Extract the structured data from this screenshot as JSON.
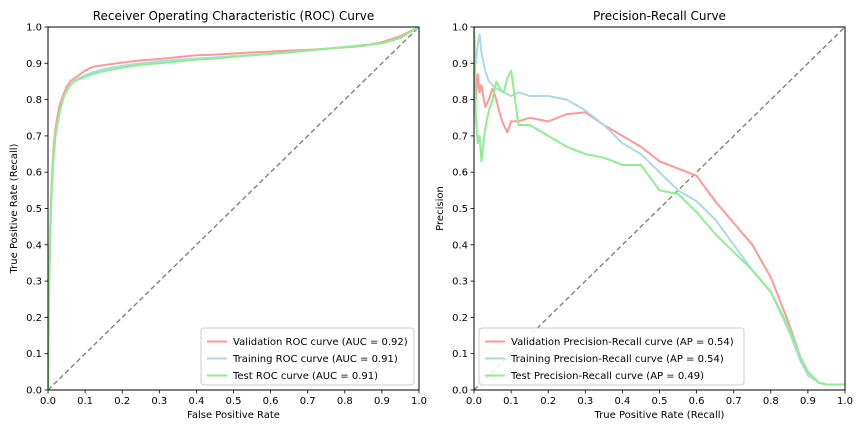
{
  "chart_data": [
    {
      "type": "line",
      "title": "Receiver Operating Characteristic (ROC) Curve",
      "xlabel": "False Positive Rate",
      "ylabel": "True Positive Rate (Recall)",
      "xlim": [
        0,
        1
      ],
      "ylim": [
        0,
        1
      ],
      "xticks": [
        "0.0",
        "0.1",
        "0.2",
        "0.3",
        "0.4",
        "0.5",
        "0.6",
        "0.7",
        "0.8",
        "0.9",
        "1.0"
      ],
      "yticks": [
        "0.0",
        "0.1",
        "0.2",
        "0.3",
        "0.4",
        "0.5",
        "0.6",
        "0.7",
        "0.8",
        "0.9",
        "1.0"
      ],
      "legend_position": "lower-right",
      "reference_line": {
        "x": [
          0,
          1
        ],
        "y": [
          0,
          1
        ],
        "color": "#808080",
        "style": "dashed"
      },
      "series": [
        {
          "name": "Validation ROC curve (AUC = 0.92)",
          "color": "#ff9999",
          "x": [
            0,
            0.003,
            0.006,
            0.01,
            0.015,
            0.02,
            0.03,
            0.04,
            0.05,
            0.06,
            0.07,
            0.08,
            0.1,
            0.12,
            0.15,
            0.2,
            0.25,
            0.3,
            0.35,
            0.4,
            0.45,
            0.5,
            0.55,
            0.6,
            0.65,
            0.7,
            0.75,
            0.8,
            0.85,
            0.9,
            0.95,
            1.0
          ],
          "y": [
            0,
            0.32,
            0.45,
            0.58,
            0.67,
            0.72,
            0.78,
            0.81,
            0.835,
            0.85,
            0.858,
            0.865,
            0.88,
            0.89,
            0.895,
            0.902,
            0.908,
            0.912,
            0.917,
            0.922,
            0.924,
            0.927,
            0.93,
            0.932,
            0.935,
            0.937,
            0.94,
            0.944,
            0.948,
            0.958,
            0.975,
            1.0
          ]
        },
        {
          "name": "Training ROC curve (AUC = 0.91)",
          "color": "#add8e6",
          "x": [
            0,
            0.003,
            0.006,
            0.01,
            0.015,
            0.02,
            0.03,
            0.04,
            0.05,
            0.06,
            0.07,
            0.08,
            0.1,
            0.12,
            0.15,
            0.2,
            0.25,
            0.3,
            0.35,
            0.4,
            0.45,
            0.5,
            0.55,
            0.6,
            0.65,
            0.7,
            0.75,
            0.8,
            0.85,
            0.9,
            0.95,
            1.0
          ],
          "y": [
            0,
            0.3,
            0.43,
            0.56,
            0.65,
            0.7,
            0.76,
            0.8,
            0.825,
            0.84,
            0.85,
            0.857,
            0.867,
            0.875,
            0.884,
            0.893,
            0.9,
            0.906,
            0.91,
            0.913,
            0.916,
            0.92,
            0.923,
            0.926,
            0.93,
            0.935,
            0.94,
            0.945,
            0.95,
            0.955,
            0.97,
            1.0
          ]
        },
        {
          "name": "Test ROC curve (AUC = 0.91)",
          "color": "#90ee90",
          "x": [
            0,
            0.003,
            0.006,
            0.01,
            0.015,
            0.02,
            0.03,
            0.04,
            0.05,
            0.06,
            0.07,
            0.08,
            0.1,
            0.12,
            0.15,
            0.2,
            0.25,
            0.3,
            0.35,
            0.4,
            0.45,
            0.5,
            0.55,
            0.6,
            0.65,
            0.7,
            0.75,
            0.8,
            0.85,
            0.9,
            0.95,
            1.0
          ],
          "y": [
            0,
            0.28,
            0.42,
            0.55,
            0.64,
            0.7,
            0.76,
            0.8,
            0.825,
            0.84,
            0.85,
            0.855,
            0.862,
            0.87,
            0.878,
            0.888,
            0.896,
            0.9,
            0.905,
            0.91,
            0.913,
            0.918,
            0.922,
            0.926,
            0.93,
            0.935,
            0.94,
            0.945,
            0.95,
            0.955,
            0.97,
            1.0
          ]
        }
      ]
    },
    {
      "type": "line",
      "title": "Precision-Recall Curve",
      "xlabel": "True Positive Rate (Recall)",
      "ylabel": "Precision",
      "xlim": [
        0,
        1
      ],
      "ylim": [
        0,
        1
      ],
      "xticks": [
        "0.0",
        "0.1",
        "0.2",
        "0.3",
        "0.4",
        "0.5",
        "0.6",
        "0.7",
        "0.8",
        "0.9",
        "1.0"
      ],
      "yticks": [
        "0.0",
        "0.1",
        "0.2",
        "0.3",
        "0.4",
        "0.5",
        "0.6",
        "0.7",
        "0.8",
        "0.9",
        "1.0"
      ],
      "legend_position": "lower-left",
      "reference_line": {
        "x": [
          0,
          1
        ],
        "y": [
          0,
          1
        ],
        "color": "#808080",
        "style": "dashed"
      },
      "series": [
        {
          "name": "Validation Precision-Recall curve (AP = 0.54)",
          "color": "#ff9999",
          "x": [
            0,
            0.005,
            0.01,
            0.015,
            0.02,
            0.03,
            0.04,
            0.05,
            0.06,
            0.07,
            0.08,
            0.09,
            0.1,
            0.12,
            0.15,
            0.2,
            0.25,
            0.3,
            0.35,
            0.4,
            0.45,
            0.5,
            0.55,
            0.6,
            0.65,
            0.7,
            0.75,
            0.8,
            0.85,
            0.88,
            0.9,
            0.93,
            0.95,
            1.0
          ],
          "y": [
            1.0,
            0.8,
            0.87,
            0.82,
            0.84,
            0.78,
            0.8,
            0.83,
            0.8,
            0.76,
            0.73,
            0.71,
            0.74,
            0.74,
            0.75,
            0.74,
            0.76,
            0.765,
            0.73,
            0.7,
            0.67,
            0.63,
            0.61,
            0.59,
            0.52,
            0.46,
            0.4,
            0.31,
            0.18,
            0.09,
            0.05,
            0.02,
            0.015,
            0.015
          ]
        },
        {
          "name": "Training Precision-Recall curve (AP = 0.54)",
          "color": "#add8e6",
          "x": [
            0,
            0.005,
            0.01,
            0.015,
            0.02,
            0.03,
            0.04,
            0.05,
            0.06,
            0.08,
            0.1,
            0.12,
            0.15,
            0.2,
            0.25,
            0.3,
            0.35,
            0.4,
            0.45,
            0.5,
            0.55,
            0.6,
            0.65,
            0.7,
            0.75,
            0.8,
            0.85,
            0.88,
            0.9,
            0.93,
            0.95,
            1.0
          ],
          "y": [
            1.0,
            0.9,
            0.95,
            0.98,
            0.93,
            0.88,
            0.85,
            0.84,
            0.83,
            0.82,
            0.81,
            0.82,
            0.81,
            0.81,
            0.8,
            0.77,
            0.73,
            0.68,
            0.65,
            0.6,
            0.55,
            0.52,
            0.47,
            0.4,
            0.33,
            0.27,
            0.16,
            0.08,
            0.04,
            0.02,
            0.015,
            0.015
          ]
        },
        {
          "name": "Test Precision-Recall curve (AP = 0.49)",
          "color": "#90ee90",
          "x": [
            0,
            0.005,
            0.01,
            0.015,
            0.02,
            0.03,
            0.04,
            0.05,
            0.06,
            0.07,
            0.08,
            0.09,
            0.1,
            0.12,
            0.15,
            0.2,
            0.25,
            0.3,
            0.35,
            0.4,
            0.45,
            0.5,
            0.55,
            0.6,
            0.65,
            0.7,
            0.75,
            0.8,
            0.85,
            0.88,
            0.9,
            0.93,
            0.95,
            1.0
          ],
          "y": [
            1.0,
            0.75,
            0.68,
            0.7,
            0.63,
            0.72,
            0.77,
            0.8,
            0.85,
            0.83,
            0.82,
            0.86,
            0.88,
            0.73,
            0.73,
            0.7,
            0.67,
            0.65,
            0.64,
            0.62,
            0.62,
            0.55,
            0.54,
            0.49,
            0.43,
            0.38,
            0.33,
            0.27,
            0.17,
            0.09,
            0.05,
            0.02,
            0.015,
            0.015
          ]
        }
      ]
    }
  ]
}
